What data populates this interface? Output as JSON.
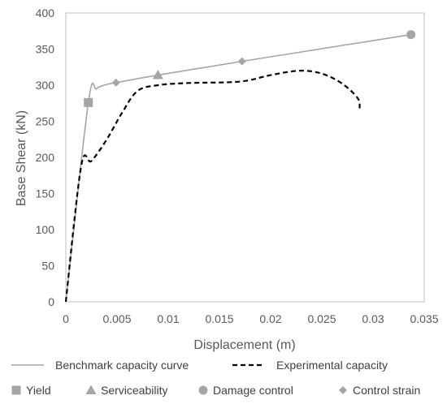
{
  "chart_data": {
    "type": "line",
    "title": "",
    "xlabel": "Displacement (m)",
    "ylabel": "Base Shear (kN)",
    "xlim": [
      0,
      0.035
    ],
    "ylim": [
      0,
      400
    ],
    "xticks": [
      0,
      0.005,
      0.01,
      0.015,
      0.02,
      0.025,
      0.03,
      0.035
    ],
    "xtick_labels": [
      "0",
      "0.005",
      "0.01",
      "0.015",
      "0.02",
      "0.025",
      "0.03",
      "0.035"
    ],
    "yticks": [
      0,
      50,
      100,
      150,
      200,
      250,
      300,
      350,
      400
    ],
    "ytick_labels": [
      "0",
      "50",
      "100",
      "150",
      "200",
      "250",
      "300",
      "350",
      "400"
    ],
    "grid": false,
    "legend_position": "bottom",
    "series": [
      {
        "name": "Benchmark capacity curve",
        "style": "solid",
        "color": "#a5a5a5",
        "x": [
          0,
          0.0022,
          0.003,
          0.004,
          0.0049,
          0.009,
          0.0172,
          0.0337
        ],
        "y": [
          0,
          276,
          295,
          301,
          303.5,
          314,
          333,
          370
        ]
      },
      {
        "name": "Experimental capacity",
        "style": "dashed",
        "color": "#000000",
        "x": [
          0,
          0.0015,
          0.0025,
          0.004,
          0.0055,
          0.007,
          0.009,
          0.012,
          0.017,
          0.02,
          0.0228,
          0.025,
          0.027,
          0.0285,
          0.0287
        ],
        "y": [
          0,
          188,
          195,
          225,
          262,
          292,
          300,
          303,
          305,
          314,
          320,
          316,
          302,
          282,
          268
        ]
      }
    ],
    "markers": [
      {
        "name": "Yield",
        "shape": "square",
        "color": "#a5a5a5",
        "x": 0.0022,
        "y": 276
      },
      {
        "name": "Serviceability",
        "shape": "triangle",
        "color": "#a5a5a5",
        "x": 0.009,
        "y": 314
      },
      {
        "name": "Damage control",
        "shape": "circle",
        "color": "#a5a5a5",
        "x": 0.0337,
        "y": 370
      },
      {
        "name": "Control strain",
        "shape": "diamond",
        "color": "#a5a5a5",
        "x": 0.0049,
        "y": 303.5
      },
      {
        "name": "Control strain",
        "shape": "diamond",
        "color": "#a5a5a5",
        "x": 0.0172,
        "y": 333
      }
    ],
    "legend": [
      {
        "label": "Benchmark capacity curve",
        "kind": "line",
        "style": "solid",
        "color": "#a5a5a5"
      },
      {
        "label": "Experimental capacity",
        "kind": "line",
        "style": "dashed",
        "color": "#000000"
      },
      {
        "label": "Yield",
        "kind": "marker",
        "shape": "square",
        "color": "#a5a5a5"
      },
      {
        "label": "Serviceability",
        "kind": "marker",
        "shape": "triangle",
        "color": "#a5a5a5"
      },
      {
        "label": "Damage control",
        "kind": "marker",
        "shape": "circle",
        "color": "#a5a5a5"
      },
      {
        "label": "Control strain",
        "kind": "marker",
        "shape": "diamond",
        "color": "#a5a5a5"
      }
    ],
    "colors": {
      "axis": "#bfbfbf",
      "text": "#595959"
    }
  }
}
